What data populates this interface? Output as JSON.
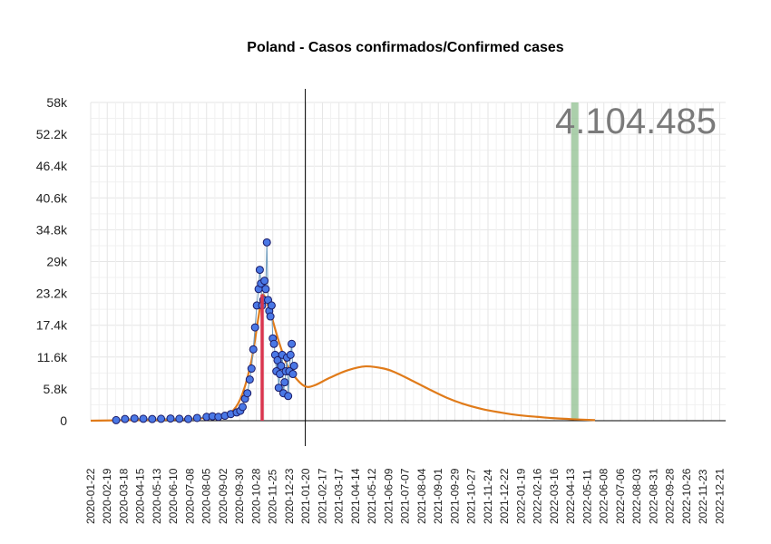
{
  "chart_data": {
    "type": "scatter",
    "title": "Poland - Casos confirmados/Confirmed cases",
    "annotation": "4.104.485",
    "ylim": [
      0,
      58000
    ],
    "yticks": [
      0,
      5800,
      11600,
      17400,
      23200,
      29000,
      34800,
      40600,
      46400,
      52200,
      58000
    ],
    "ytick_labels": [
      "0",
      "5.8k",
      "11.6k",
      "17.4k",
      "23.2k",
      "29k",
      "34.8k",
      "40.6k",
      "46.4k",
      "52.2k",
      "58k"
    ],
    "x_start": "2020-01-22",
    "x_end": "2022-12-31",
    "xtick_labels": [
      "2020-01-22",
      "2020-02-19",
      "2020-03-18",
      "2020-04-15",
      "2020-05-13",
      "2020-06-10",
      "2020-07-08",
      "2020-08-05",
      "2020-09-02",
      "2020-09-30",
      "2020-10-28",
      "2020-11-25",
      "2020-12-23",
      "2021-01-20",
      "2021-02-17",
      "2021-03-17",
      "2021-04-14",
      "2021-05-12",
      "2021-06-09",
      "2021-07-07",
      "2021-08-04",
      "2021-09-01",
      "2021-09-29",
      "2021-10-27",
      "2021-11-24",
      "2021-12-22",
      "2022-01-19",
      "2022-02-16",
      "2022-03-16",
      "2022-04-13",
      "2022-05-11",
      "2022-06-08",
      "2022-07-06",
      "2022-08-03",
      "2022-08-31",
      "2022-09-28",
      "2022-10-26",
      "2022-11-23",
      "2022-12-21"
    ],
    "current_date": "2021-01-19",
    "peak_date": "2020-11-07",
    "peak_value": 23000,
    "highlight_band": [
      "2022-04-14",
      "2022-04-26"
    ],
    "colors": {
      "points_fill": "#4a78e6",
      "points_stroke": "#1a1a66",
      "trend": "#e07b1a",
      "peak": "#d9364f",
      "band": "#8fbf8f",
      "grid": "#e6e6e6",
      "total": "#7a7a7a"
    },
    "series": [
      {
        "type": "points",
        "x": [
          "2020-03-05",
          "2020-03-20",
          "2020-04-05",
          "2020-04-20",
          "2020-05-05",
          "2020-05-20",
          "2020-06-05",
          "2020-06-20",
          "2020-07-05",
          "2020-07-20",
          "2020-08-05",
          "2020-08-15",
          "2020-08-25",
          "2020-09-05",
          "2020-09-15",
          "2020-09-25",
          "2020-10-01",
          "2020-10-05",
          "2020-10-09",
          "2020-10-13",
          "2020-10-17",
          "2020-10-20",
          "2020-10-23",
          "2020-10-26",
          "2020-10-29",
          "2020-11-01",
          "2020-11-03",
          "2020-11-05",
          "2020-11-07",
          "2020-11-09",
          "2020-11-11",
          "2020-11-13",
          "2020-11-15",
          "2020-11-17",
          "2020-11-19",
          "2020-11-21",
          "2020-11-23",
          "2020-11-25",
          "2020-11-27",
          "2020-11-29",
          "2020-12-01",
          "2020-12-03",
          "2020-12-05",
          "2020-12-07",
          "2020-12-09",
          "2020-12-11",
          "2020-12-13",
          "2020-12-15",
          "2020-12-17",
          "2020-12-19",
          "2020-12-21",
          "2020-12-23",
          "2020-12-25",
          "2020-12-27",
          "2020-12-29",
          "2020-12-31"
        ],
        "y": [
          100,
          300,
          400,
          350,
          300,
          350,
          400,
          350,
          300,
          500,
          700,
          800,
          700,
          900,
          1200,
          1500,
          1800,
          2500,
          4000,
          5000,
          7500,
          9500,
          13000,
          17000,
          21000,
          24000,
          27500,
          25000,
          21000,
          22000,
          25500,
          24000,
          32500,
          22000,
          20000,
          19000,
          21000,
          15000,
          14000,
          12000,
          9000,
          11000,
          6000,
          8500,
          10000,
          12000,
          5000,
          7000,
          9000,
          11500,
          4500,
          9000,
          12000,
          14000,
          8500,
          10000
        ]
      },
      {
        "type": "trend",
        "x": [
          "2020-01-22",
          "2020-06-01",
          "2020-08-01",
          "2020-09-01",
          "2020-09-20",
          "2020-10-05",
          "2020-10-20",
          "2020-11-01",
          "2020-11-08",
          "2020-11-20",
          "2020-12-05",
          "2020-12-20",
          "2021-01-05",
          "2021-01-20",
          "2021-02-05",
          "2021-03-01",
          "2021-04-01",
          "2021-05-01",
          "2021-06-01",
          "2021-06-20",
          "2021-07-15",
          "2021-08-15",
          "2021-09-15",
          "2021-10-15",
          "2021-11-15",
          "2021-12-15",
          "2022-01-15",
          "2022-02-15",
          "2022-03-15",
          "2022-04-20",
          "2022-05-24"
        ],
        "y": [
          0,
          200,
          500,
          1000,
          2000,
          5000,
          11000,
          19000,
          23000,
          20000,
          14500,
          10000,
          7500,
          6200,
          6500,
          7800,
          9200,
          9900,
          9500,
          8800,
          7500,
          5800,
          4200,
          3000,
          2100,
          1500,
          1000,
          700,
          450,
          250,
          100
        ]
      }
    ]
  }
}
